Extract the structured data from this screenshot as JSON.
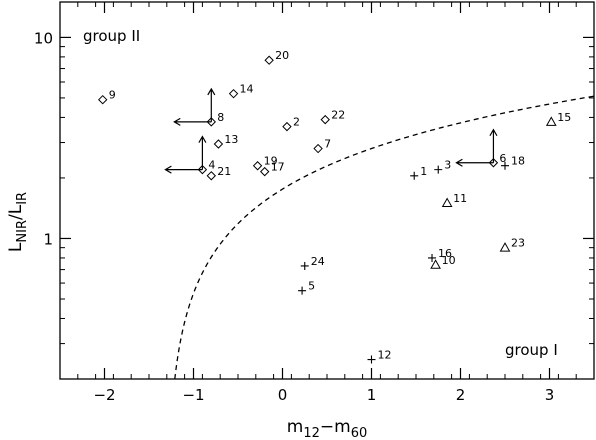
{
  "chart_data": {
    "type": "scatter",
    "xlabel": "m",
    "xlabel_sub1": "12",
    "xlabel_mid": "−m",
    "xlabel_sub2": "60",
    "ylabel": "L",
    "ylabel_sub1": "NIR",
    "ylabel_mid": "/L",
    "ylabel_sub2": "IR",
    "xlim": [
      -2.5,
      3.5
    ],
    "ylim": [
      0.2,
      15
    ],
    "yscale": "log",
    "xticks": [
      -2,
      -1,
      0,
      1,
      2,
      3
    ],
    "xtick_labels": [
      "−2",
      "−1",
      "0",
      "1",
      "2",
      "3"
    ],
    "yticks": [
      1,
      10
    ],
    "ytick_labels": [
      "1",
      "10"
    ],
    "grid": false,
    "annotations": [
      {
        "text": "group II",
        "x": -2.22,
        "y": 10.0
      },
      {
        "text": "group I",
        "x": 1.48,
        "y": 0.29
      }
    ],
    "boundary_curve": {
      "style": "dashed",
      "x0": -1.3,
      "y_end": 5.1,
      "x_end": 3.5
    },
    "points": [
      {
        "id": "1",
        "marker": "plus",
        "x": 1.48,
        "y": 2.05
      },
      {
        "id": "2",
        "marker": "diamond",
        "x": 0.05,
        "y": 3.6
      },
      {
        "id": "3",
        "marker": "plus",
        "x": 1.75,
        "y": 2.2
      },
      {
        "id": "4",
        "marker": "diamond",
        "x": -0.9,
        "y": 2.2,
        "arrows": [
          "left",
          "up"
        ]
      },
      {
        "id": "5",
        "marker": "plus",
        "x": 0.22,
        "y": 0.55
      },
      {
        "id": "6",
        "marker": "diamond",
        "x": 2.37,
        "y": 2.38,
        "arrows": [
          "left",
          "up"
        ]
      },
      {
        "id": "7",
        "marker": "diamond",
        "x": 0.4,
        "y": 2.8
      },
      {
        "id": "8",
        "marker": "diamond",
        "x": -0.8,
        "y": 3.8,
        "arrows": [
          "left",
          "up"
        ]
      },
      {
        "id": "9",
        "marker": "diamond",
        "x": -2.02,
        "y": 4.9
      },
      {
        "id": "10",
        "marker": "triangle",
        "x": 1.72,
        "y": 0.74
      },
      {
        "id": "11",
        "marker": "triangle",
        "x": 1.85,
        "y": 1.5
      },
      {
        "id": "12",
        "marker": "plus",
        "x": 1.0,
        "y": 0.25
      },
      {
        "id": "13",
        "marker": "diamond",
        "x": -0.72,
        "y": 2.95
      },
      {
        "id": "14",
        "marker": "diamond",
        "x": -0.55,
        "y": 5.25
      },
      {
        "id": "15",
        "marker": "triangle",
        "x": 3.02,
        "y": 3.8
      },
      {
        "id": "16",
        "marker": "plus",
        "x": 1.68,
        "y": 0.8
      },
      {
        "id": "17",
        "marker": "diamond",
        "x": -0.2,
        "y": 2.15
      },
      {
        "id": "18",
        "marker": "plus",
        "x": 2.5,
        "y": 2.3
      },
      {
        "id": "19",
        "marker": "diamond",
        "x": -0.28,
        "y": 2.3
      },
      {
        "id": "20",
        "marker": "diamond",
        "x": -0.15,
        "y": 7.7
      },
      {
        "id": "21",
        "marker": "diamond",
        "x": -0.8,
        "y": 2.05
      },
      {
        "id": "22",
        "marker": "diamond",
        "x": 0.48,
        "y": 3.9
      },
      {
        "id": "23",
        "marker": "triangle",
        "x": 2.5,
        "y": 0.9
      },
      {
        "id": "24",
        "marker": "plus",
        "x": 0.25,
        "y": 0.73
      }
    ]
  }
}
